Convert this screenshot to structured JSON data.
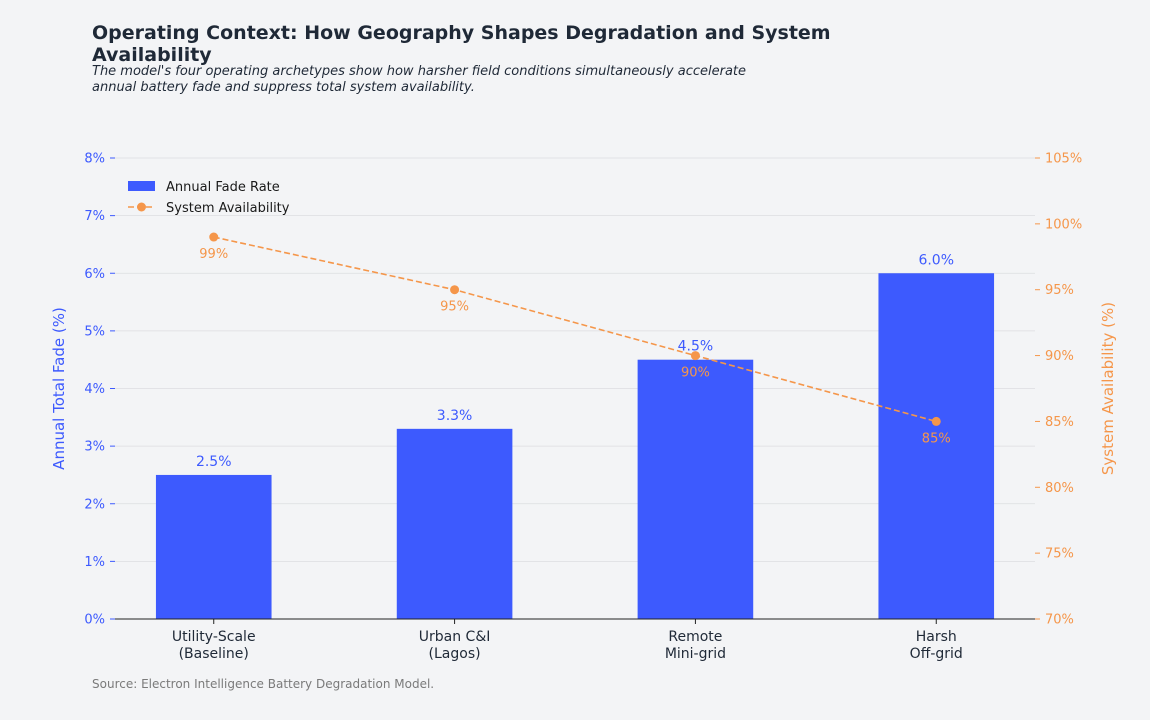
{
  "title": "Operating Context: How Geography Shapes Degradation and System Availability",
  "subtitle": "The model's four operating archetypes show how harsher field conditions simultaneously accelerate annual battery fade and suppress total system availability.",
  "source": "Source: Electron Intelligence Battery Degradation Model.",
  "chart_data": {
    "type": "bar+line",
    "categories": [
      "Utility-Scale\n(Baseline)",
      "Urban C&I\n(Lagos)",
      "Remote\nMini-grid",
      "Harsh\nOff-grid"
    ],
    "series": [
      {
        "name": "Annual Fade Rate",
        "type": "bar",
        "axis": "left",
        "values": [
          2.5,
          3.3,
          4.5,
          6.0
        ],
        "labels": [
          "2.5%",
          "3.3%",
          "4.5%",
          "6.0%"
        ],
        "color": "#3d5afe"
      },
      {
        "name": "System Availability",
        "type": "line",
        "axis": "right",
        "values": [
          99,
          95,
          90,
          85
        ],
        "labels": [
          "99%",
          "95%",
          "90%",
          "85%"
        ],
        "color": "#f5964a",
        "linestyle": "dashed",
        "marker": "circle"
      }
    ],
    "ylabel": "Annual Total Fade (%)",
    "ylabel_right": "System Availability (%)",
    "ylim": [
      0,
      8
    ],
    "ylim_right": [
      70,
      105
    ],
    "yticks": [
      "0%",
      "1%",
      "2%",
      "3%",
      "4%",
      "5%",
      "6%",
      "7%",
      "8%"
    ],
    "yticks_right": [
      "70%",
      "75%",
      "80%",
      "85%",
      "90%",
      "95%",
      "100%",
      "105%"
    ],
    "grid": true,
    "legend": "top-left"
  }
}
